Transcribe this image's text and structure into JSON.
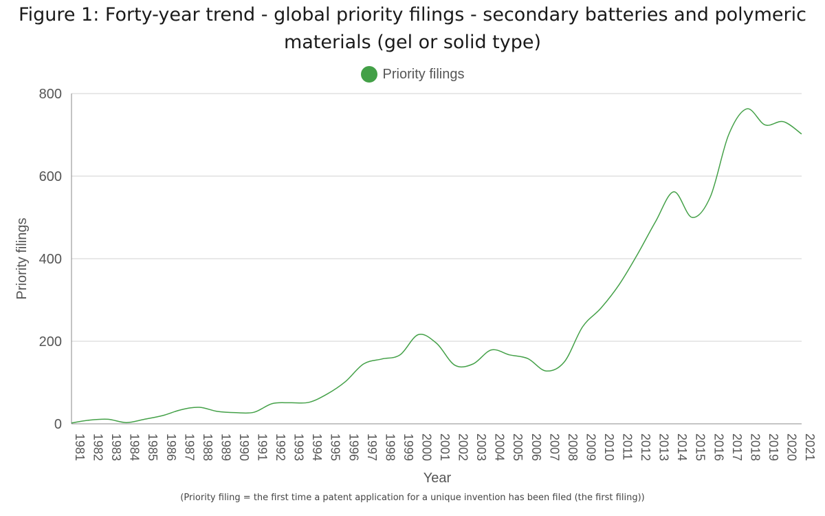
{
  "title_line1": "Figure 1: Forty-year trend - global priority filings - secondary batteries and polymeric",
  "title_line2": "materials (gel or solid type)",
  "footnote": "(Priority filing = the first time a patent application for a unique invention has been filed (the first filing))",
  "colors": {
    "series": "#43a047",
    "grid": "#d0d0d0",
    "text": "#555555"
  },
  "chart_data": {
    "type": "line",
    "title": "Figure 1: Forty-year trend - global priority filings - secondary batteries and polymeric materials (gel or solid type)",
    "xlabel": "Year",
    "ylabel": "Priority filings",
    "ylim": [
      0,
      800
    ],
    "yticks": [
      0,
      200,
      400,
      600,
      800
    ],
    "grid": true,
    "legend_position": "top-center",
    "x": [
      "1981",
      "1982",
      "1983",
      "1984",
      "1985",
      "1986",
      "1987",
      "1988",
      "1989",
      "1990",
      "1991",
      "1992",
      "1993",
      "1994",
      "1995",
      "1996",
      "1997",
      "1998",
      "1999",
      "2000",
      "2001",
      "2002",
      "2003",
      "2004",
      "2005",
      "2006",
      "2007",
      "2008",
      "2009",
      "2010",
      "2011",
      "2012",
      "2013",
      "2014",
      "2015",
      "2016",
      "2017",
      "2018",
      "2019",
      "2020",
      "2021"
    ],
    "series": [
      {
        "name": "Priority filings",
        "values": [
          2,
          9,
          11,
          3,
          11,
          20,
          34,
          40,
          30,
          27,
          28,
          49,
          51,
          52,
          72,
          102,
          145,
          157,
          167,
          216,
          195,
          142,
          145,
          179,
          167,
          158,
          128,
          150,
          235,
          280,
          337,
          410,
          490,
          562,
          500,
          550,
          700,
          763,
          724,
          732,
          702
        ]
      }
    ]
  }
}
